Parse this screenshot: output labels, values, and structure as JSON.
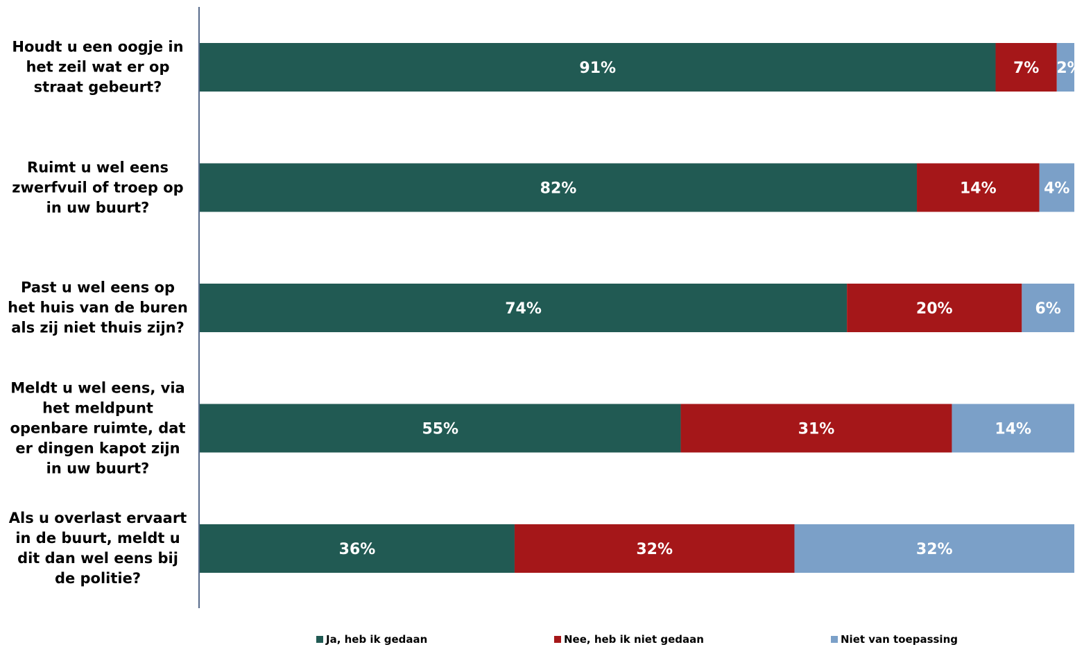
{
  "chart_data": {
    "type": "bar",
    "orientation": "horizontal",
    "stacked": true,
    "categories": [
      "Houdt u een oogje in het zeil wat er op straat gebeurt?",
      "Ruimt u wel eens zwerfvuil of troep op in uw buurt?",
      "Past u wel eens op het huis van de buren als zij niet thuis zijn?",
      "Meldt u wel eens, via het meldpunt openbare ruimte, dat er dingen kapot zijn in uw buurt?",
      "Als u overlast ervaart in de buurt, meldt u dit dan wel eens bij de politie?"
    ],
    "category_lines": [
      [
        "Houdt u een oogje in",
        "het zeil wat er op",
        "straat gebeurt?"
      ],
      [
        "Ruimt u wel eens",
        "zwerfvuil of troep op",
        "in uw buurt?"
      ],
      [
        "Past u wel eens op",
        "het huis van de buren",
        "als zij  niet thuis zijn?"
      ],
      [
        "Meldt u wel eens, via",
        "het meldpunt",
        "openbare ruimte, dat",
        "er dingen kapot zijn",
        "in uw buurt?"
      ],
      [
        "Als u overlast ervaart",
        "in de buurt, meldt u",
        "dit dan wel eens bij",
        "de politie?"
      ]
    ],
    "series": [
      {
        "name": "Ja, heb ik gedaan",
        "color": "#215A53",
        "values": [
          91,
          82,
          74,
          55,
          36
        ],
        "labels": [
          "91%",
          "82%",
          "74%",
          "55%",
          "36%"
        ]
      },
      {
        "name": "Nee, heb ik niet gedaan",
        "color": "#A51719",
        "values": [
          7,
          14,
          20,
          31,
          32
        ],
        "labels": [
          "7%",
          "14%",
          "20%",
          "31%",
          "32%"
        ]
      },
      {
        "name": "Niet van toepassing",
        "color": "#7BA0C8",
        "values": [
          2,
          4,
          6,
          14,
          32
        ],
        "labels": [
          "2%",
          "4%",
          "6%",
          "14%",
          "32%"
        ]
      }
    ],
    "xlim": [
      0,
      100
    ],
    "grid": false,
    "legend_position": "bottom"
  }
}
